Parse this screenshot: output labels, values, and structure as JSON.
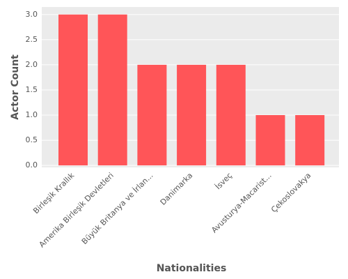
{
  "chart_data": {
    "type": "bar",
    "categories": [
      "Birleşik Krallık",
      "Amerika Birleşik Devletleri",
      "Büyük Britanya ve İrlan...",
      "Danimarka",
      "İsveç",
      "Avusturya-Macarist...",
      "Çekoslovakya"
    ],
    "values": [
      3,
      3,
      2,
      2,
      2,
      1,
      1
    ],
    "color": "#ff5558",
    "x_label": "Nationalities",
    "y_label": "Actor Count",
    "ylim": [
      -0.04,
      3.15
    ],
    "yticks": [
      {
        "value": 0,
        "label": "0.0"
      },
      {
        "value": 0.5,
        "label": "0.5"
      },
      {
        "value": 1,
        "label": "1.0"
      },
      {
        "value": 1.5,
        "label": "1.5"
      },
      {
        "value": 2,
        "label": "2.0"
      },
      {
        "value": 2.5,
        "label": "2.5"
      },
      {
        "value": 3,
        "label": "3.0"
      }
    ],
    "grid": true
  }
}
